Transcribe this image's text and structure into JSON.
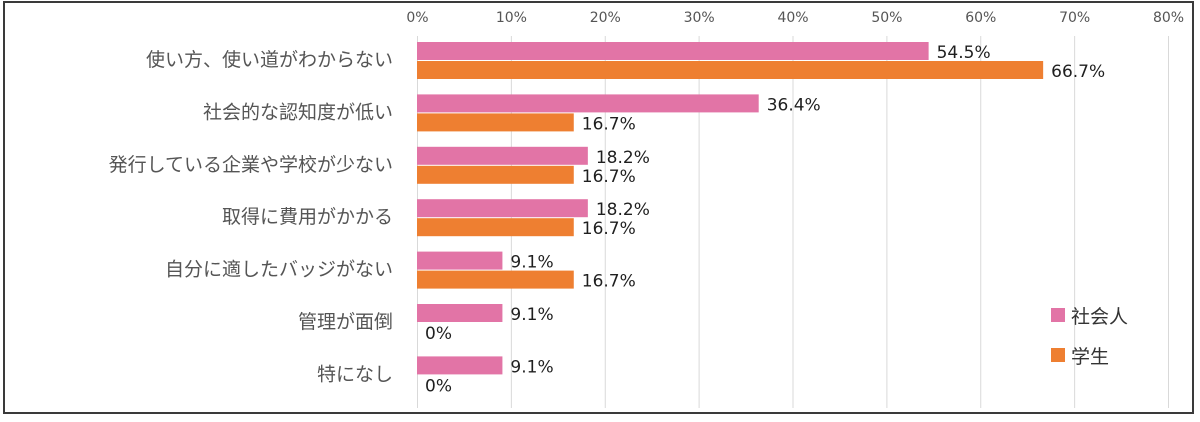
{
  "chart_data": {
    "type": "bar",
    "orientation": "horizontal",
    "title": "",
    "xlabel": "",
    "ylabel": "",
    "xlim": [
      0,
      80
    ],
    "tick_values": [
      0,
      10,
      20,
      30,
      40,
      50,
      60,
      70,
      80
    ],
    "tick_labels": [
      "0%",
      "10%",
      "20%",
      "30%",
      "40%",
      "50%",
      "60%",
      "70%",
      "80%"
    ],
    "grid": true,
    "legend_position": "bottom-right",
    "categories": [
      "使い方、使い道がわからない",
      "社会的な認知度が低い",
      "発行している企業や学校が少ない",
      "取得に費用がかかる",
      "自分に適したバッジがない",
      "管理が面倒",
      "特になし"
    ],
    "series": [
      {
        "name": "社会人",
        "color": "#e274a6",
        "values": [
          54.5,
          36.4,
          18.2,
          18.2,
          9.1,
          9.1,
          9.1
        ],
        "labels": [
          "54.5%",
          "36.4%",
          "18.2%",
          "18.2%",
          "9.1%",
          "9.1%",
          "9.1%"
        ]
      },
      {
        "name": "学生",
        "color": "#ee7f31",
        "values": [
          66.7,
          16.7,
          16.7,
          16.7,
          16.7,
          0,
          0
        ],
        "labels": [
          "66.7%",
          "16.7%",
          "16.7%",
          "16.7%",
          "16.7%",
          "0%",
          "0%"
        ]
      }
    ]
  }
}
